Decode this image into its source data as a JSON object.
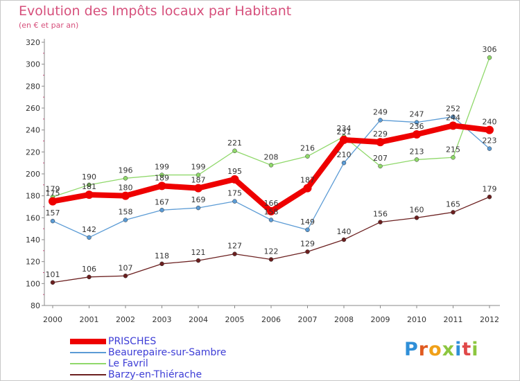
{
  "title": "Evolution des Impôts locaux par Habitant",
  "subtitle": "(en € et par an)",
  "logo": {
    "letters": [
      {
        "ch": "P",
        "color": "#2f8fd8"
      },
      {
        "ch": "r",
        "color": "#e05a20"
      },
      {
        "ch": "o",
        "color": "#f0a018"
      },
      {
        "ch": "x",
        "color": "#8cc63f"
      },
      {
        "ch": "i",
        "color": "#2f8fd8"
      },
      {
        "ch": "t",
        "color": "#e04848"
      },
      {
        "ch": "i",
        "color": "#8cc63f"
      }
    ]
  },
  "chart_data": {
    "type": "line",
    "x": [
      "2000",
      "2001",
      "2002",
      "2003",
      "2004",
      "2005",
      "2006",
      "2007",
      "2008",
      "2009",
      "2010",
      "2011",
      "2012"
    ],
    "ylim": [
      80,
      320
    ],
    "yticks": [
      80,
      100,
      120,
      140,
      160,
      180,
      200,
      220,
      240,
      260,
      280,
      300,
      320
    ],
    "grid": false,
    "legend": "bottom-left",
    "series": [
      {
        "name": "PRISCHES",
        "color": "#ee0000",
        "values": [
          175,
          181,
          180,
          189,
          187,
          195,
          166,
          187,
          231,
          229,
          236,
          244,
          240
        ],
        "labels": [
          "175",
          "181",
          "180",
          "189",
          "187",
          "195",
          "166",
          "187",
          "231",
          "229",
          "236",
          "244",
          "240"
        ]
      },
      {
        "name": "Beaurepaire-sur-Sambre",
        "color": "#5b9bd5",
        "values": [
          157,
          142,
          158,
          167,
          169,
          175,
          158,
          149,
          210,
          249,
          247,
          252,
          223
        ],
        "labels": [
          "157",
          "142",
          "158",
          "167",
          "169",
          "175",
          "158",
          "149",
          "210",
          "249",
          "247",
          "252",
          "223"
        ]
      },
      {
        "name": "Le Favril",
        "color": "#8fd86a",
        "values": [
          179,
          190,
          196,
          199,
          199,
          221,
          208,
          216,
          234,
          207,
          213,
          215,
          306
        ],
        "labels": [
          "179",
          "190",
          "196",
          "199",
          "199",
          "221",
          "208",
          "216",
          "234",
          "207",
          "213",
          "215",
          "306"
        ]
      },
      {
        "name": "Barzy-en-Thiérache",
        "color": "#6b1f1f",
        "values": [
          101,
          106,
          107,
          118,
          121,
          127,
          122,
          129,
          140,
          156,
          160,
          165,
          179
        ],
        "labels": [
          "101",
          "106",
          "107",
          "118",
          "121",
          "127",
          "122",
          "129",
          "140",
          "156",
          "160",
          "165",
          "179"
        ]
      }
    ]
  }
}
